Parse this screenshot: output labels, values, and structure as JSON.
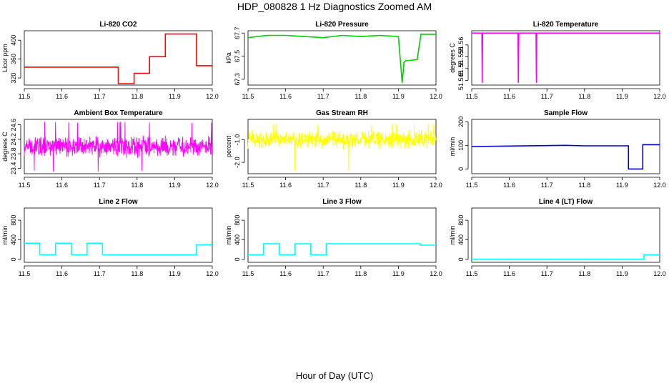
{
  "title": "HDP_080828  1 Hz Diagnostics Zoomed AM",
  "xlabel": "Hour of Day (UTC)",
  "chart_data": [
    {
      "type": "line",
      "title": "Li-820 CO2",
      "ylabel": "Licor ppm",
      "color": "#ff0000",
      "xlim": [
        11.5,
        12.0
      ],
      "ylim": [
        305,
        420
      ],
      "yticks": [
        320,
        360,
        400
      ],
      "xticks": [
        11.5,
        11.6,
        11.7,
        11.8,
        11.9,
        12.0
      ],
      "x": [
        11.5,
        11.75,
        11.75,
        11.792,
        11.792,
        11.833,
        11.833,
        11.875,
        11.875,
        11.958,
        11.958,
        12.0
      ],
      "y": [
        343,
        343,
        308,
        308,
        330,
        330,
        365,
        365,
        413,
        413,
        346,
        346
      ]
    },
    {
      "type": "line",
      "title": "Li-820 Pressure",
      "ylabel": "kPa",
      "color": "#00cc00",
      "xlim": [
        11.5,
        12.0
      ],
      "ylim": [
        67.25,
        67.72
      ],
      "yticks": [
        67.3,
        67.5,
        67.7
      ],
      "xticks": [
        11.5,
        11.6,
        11.7,
        11.8,
        11.9,
        12.0
      ],
      "x": [
        11.5,
        11.55,
        11.6,
        11.65,
        11.7,
        11.75,
        11.8,
        11.85,
        11.9,
        11.91,
        11.915,
        11.92,
        11.95,
        11.96,
        11.97,
        12.0
      ],
      "y": [
        67.66,
        67.68,
        67.68,
        67.67,
        67.66,
        67.68,
        67.67,
        67.68,
        67.67,
        67.27,
        67.45,
        67.46,
        67.47,
        67.69,
        67.69,
        67.69
      ]
    },
    {
      "type": "line",
      "title": "Li-820 Temperature",
      "ylabel": "degrees C",
      "color": "#ff00ff",
      "xlim": [
        11.5,
        12.0
      ],
      "ylim": [
        51.543,
        51.566
      ],
      "yticks": [
        51.545,
        51.55,
        51.555,
        51.56
      ],
      "xticks": [
        11.5,
        11.6,
        11.7,
        11.8,
        11.9,
        12.0
      ],
      "x": [
        11.5,
        11.527,
        11.528,
        11.529,
        11.623,
        11.624,
        11.625,
        11.671,
        11.672,
        11.673,
        12.0
      ],
      "y": [
        51.565,
        51.565,
        51.544,
        51.565,
        51.565,
        51.544,
        51.565,
        51.565,
        51.544,
        51.565,
        51.565
      ]
    },
    {
      "type": "line",
      "title": "Ambient Box Temperature",
      "ylabel": "degrees C",
      "color": "#ff00ff",
      "xlim": [
        11.5,
        12.0
      ],
      "ylim": [
        23.25,
        24.75
      ],
      "yticks": [
        23.4,
        23.8,
        24.2,
        24.6
      ],
      "xticks": [
        11.5,
        11.6,
        11.7,
        11.8,
        11.9,
        12.0
      ],
      "noise": {
        "center": 24.0,
        "spread": 0.32,
        "max": 24.7,
        "min": 23.3
      }
    },
    {
      "type": "line",
      "title": "Gas Stream RH",
      "ylabel": "percent",
      "color": "#ffff00",
      "xlim": [
        11.5,
        12.0
      ],
      "ylim": [
        -2.5,
        -0.1
      ],
      "yticks": [
        -2.0,
        -1.0
      ],
      "xticks": [
        11.5,
        11.6,
        11.7,
        11.8,
        11.9,
        12.0
      ],
      "noise": {
        "center": -1.0,
        "spread": 0.45,
        "max": -0.3,
        "min": -2.4
      }
    },
    {
      "type": "line",
      "title": "Sample Flow",
      "ylabel": "ml/min",
      "color": "#0000cc",
      "xlim": [
        11.5,
        12.0
      ],
      "ylim": [
        -20,
        210
      ],
      "yticks": [
        0,
        100,
        200
      ],
      "xticks": [
        11.5,
        11.6,
        11.7,
        11.8,
        11.9,
        12.0
      ],
      "x": [
        11.5,
        11.6,
        11.75,
        11.8,
        11.917,
        11.917,
        11.955,
        11.955,
        12.0
      ],
      "y": [
        95,
        97,
        100,
        98,
        98,
        0,
        0,
        103,
        103
      ]
    },
    {
      "type": "line",
      "title": "Line 2 Flow",
      "ylabel": "ml/min",
      "color": "#00ffff",
      "xlim": [
        11.5,
        12.0
      ],
      "ylim": [
        -60,
        1050
      ],
      "yticks": [
        0,
        400,
        800
      ],
      "xticks": [
        11.5,
        11.6,
        11.7,
        11.8,
        11.9,
        12.0
      ],
      "x": [
        11.5,
        11.541,
        11.541,
        11.583,
        11.583,
        11.625,
        11.625,
        11.667,
        11.667,
        11.708,
        11.708,
        11.958,
        11.958,
        12.0
      ],
      "y": [
        330,
        330,
        95,
        95,
        330,
        330,
        95,
        95,
        330,
        330,
        95,
        95,
        300,
        300
      ]
    },
    {
      "type": "line",
      "title": "Line 3 Flow",
      "ylabel": "ml/min",
      "color": "#00ffff",
      "xlim": [
        11.5,
        12.0
      ],
      "ylim": [
        -60,
        1050
      ],
      "yticks": [
        0,
        400,
        800
      ],
      "xticks": [
        11.5,
        11.6,
        11.7,
        11.8,
        11.9,
        12.0
      ],
      "x": [
        11.5,
        11.541,
        11.541,
        11.583,
        11.583,
        11.625,
        11.625,
        11.667,
        11.667,
        11.708,
        11.708,
        11.958,
        11.958,
        12.0
      ],
      "y": [
        95,
        95,
        320,
        320,
        95,
        95,
        320,
        320,
        95,
        95,
        320,
        320,
        290,
        290
      ]
    },
    {
      "type": "line",
      "title": "Line 4 (LT) Flow",
      "ylabel": "ml/min",
      "color": "#00ffff",
      "xlim": [
        11.5,
        12.0
      ],
      "ylim": [
        -60,
        1050
      ],
      "yticks": [
        0,
        400,
        800
      ],
      "xticks": [
        11.5,
        11.6,
        11.7,
        11.8,
        11.9,
        12.0
      ],
      "x": [
        11.5,
        11.958,
        11.958,
        12.0
      ],
      "y": [
        5,
        5,
        95,
        95
      ]
    }
  ]
}
